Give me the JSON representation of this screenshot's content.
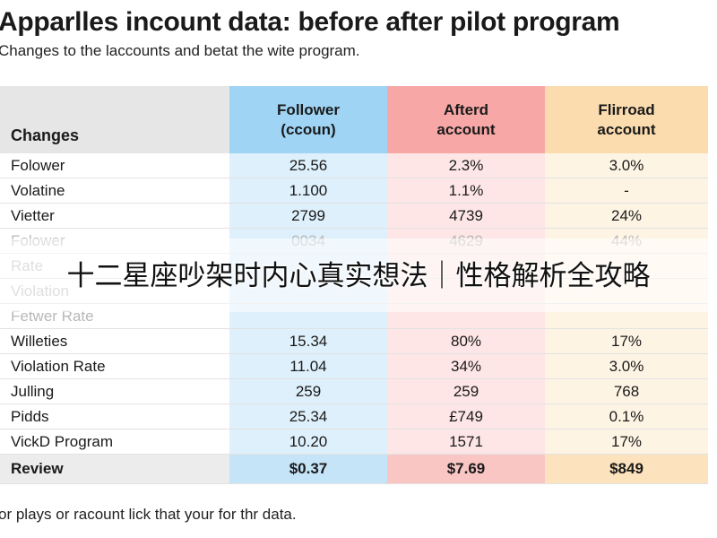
{
  "header": {
    "title": "Apparlles incount data: before after pilot program",
    "subtitle": "Changes to the laccounts and betat the wite program."
  },
  "table": {
    "columns": [
      "Changes",
      "Follower\n(ccoun)",
      "Afterd\naccount",
      "Flirroad\naccount"
    ],
    "rows": [
      {
        "label": "Folower",
        "values": [
          "25.56",
          "2.3%",
          "3.0%"
        ]
      },
      {
        "label": "Volatine",
        "values": [
          "1.100",
          "1.1%",
          "-"
        ]
      },
      {
        "label": "Vietter",
        "values": [
          "2799",
          "4739",
          "24%"
        ]
      },
      {
        "label": "Folower",
        "values": [
          "0034",
          "4629",
          "44%"
        ]
      },
      {
        "label": "Rate",
        "values": [
          "",
          "",
          ""
        ]
      },
      {
        "label": "Violation",
        "values": [
          "",
          "",
          ""
        ]
      },
      {
        "label": "Fetwer Rate",
        "values": [
          "",
          "",
          ""
        ]
      },
      {
        "label": "Willeties",
        "values": [
          "15.34",
          "80%",
          "17%"
        ]
      },
      {
        "label": "Violation Rate",
        "values": [
          "11.04",
          "34%",
          "3.0%"
        ]
      },
      {
        "label": "Julling",
        "values": [
          "259",
          "259",
          "768"
        ]
      },
      {
        "label": "Pidds",
        "values": [
          "25.34",
          "£749",
          "0.1%"
        ]
      },
      {
        "label": "VickD Program",
        "values": [
          "10.20",
          "1571",
          "17%"
        ]
      }
    ],
    "total": {
      "label": "Review",
      "values": [
        "$0.37",
        "$7.69",
        "$849"
      ]
    }
  },
  "overlay": {
    "caption": "十二星座吵架时内心真实想法｜性格解析全攻略"
  },
  "footer": {
    "note": "or plays or racount lick that your for thr data."
  },
  "colors": {
    "col1_header": "#9fd4f4",
    "col2_header": "#f7a8a6",
    "col3_header": "#fbdcaf"
  }
}
